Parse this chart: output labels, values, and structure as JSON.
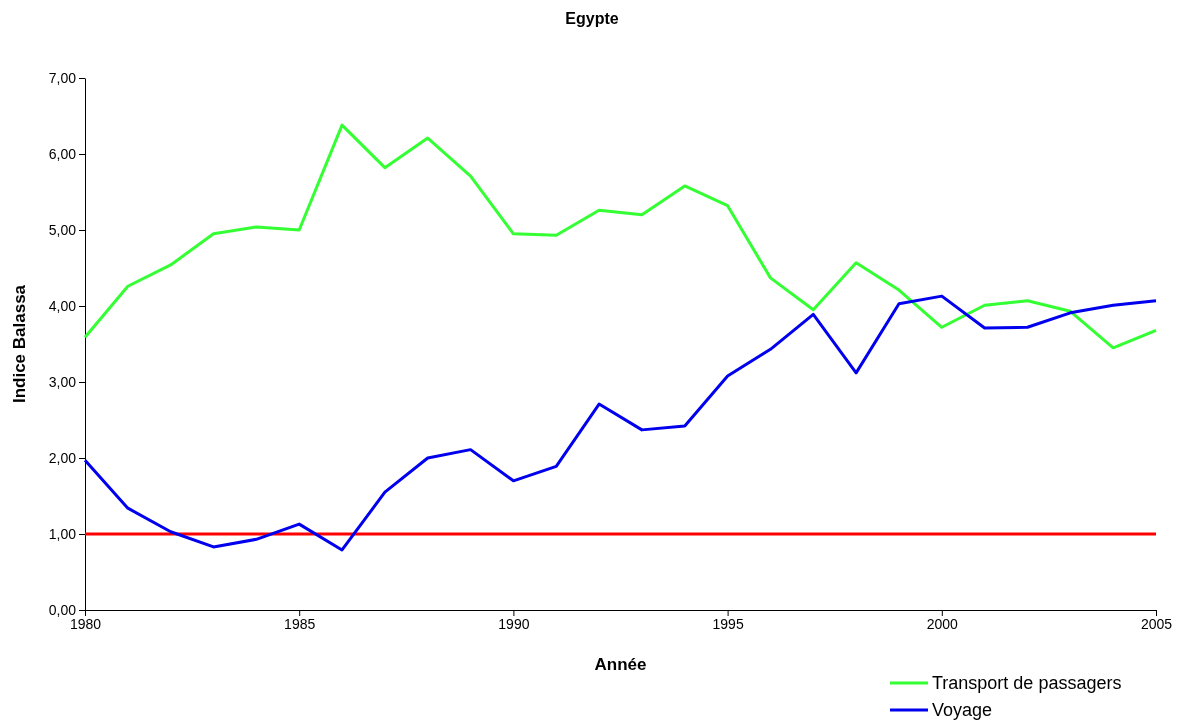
{
  "chart_data": {
    "type": "line",
    "title": "Egypte",
    "xlabel": "Année",
    "ylabel": "Indice Balassa",
    "x": [
      1980,
      1981,
      1982,
      1983,
      1984,
      1985,
      1986,
      1987,
      1988,
      1989,
      1990,
      1991,
      1992,
      1993,
      1994,
      1995,
      1996,
      1997,
      1998,
      1999,
      2000,
      2001,
      2002,
      2003,
      2004,
      2005
    ],
    "series": [
      {
        "name": "Transport de passagers",
        "color": "#33ff33",
        "values": [
          3.59,
          4.26,
          4.54,
          4.95,
          5.04,
          5.0,
          6.38,
          5.82,
          6.21,
          5.71,
          4.95,
          4.93,
          5.26,
          5.2,
          5.58,
          5.32,
          4.37,
          3.95,
          4.57,
          4.21,
          3.72,
          4.01,
          4.07,
          3.93,
          3.45,
          3.68
        ]
      },
      {
        "name": "Voyage",
        "color": "#0000ee",
        "values": [
          1.97,
          1.34,
          1.03,
          0.83,
          0.93,
          1.13,
          0.79,
          1.55,
          2.0,
          2.11,
          1.7,
          1.89,
          2.71,
          2.37,
          2.42,
          3.08,
          3.43,
          3.89,
          3.12,
          4.03,
          4.13,
          3.71,
          3.72,
          3.91,
          4.01,
          4.07
        ]
      }
    ],
    "xlim": [
      1980,
      2005
    ],
    "xticks": [
      1980,
      1985,
      1990,
      1995,
      2000,
      2005
    ],
    "ylim": [
      0,
      7
    ],
    "yticks": [
      {
        "value": 0,
        "label": "0,00"
      },
      {
        "value": 1,
        "label": "1,00"
      },
      {
        "value": 2,
        "label": "2,00"
      },
      {
        "value": 3,
        "label": "3,00"
      },
      {
        "value": 4,
        "label": "4,00"
      },
      {
        "value": 5,
        "label": "5,00"
      },
      {
        "value": 6,
        "label": "6,00"
      },
      {
        "value": 7,
        "label": "7,00"
      }
    ],
    "ref_lines": [
      {
        "axis": "y",
        "value": 1,
        "color": "#ff0000"
      }
    ],
    "grid": false,
    "legend": "bottom right",
    "marker": "none",
    "line_style": "solid"
  }
}
